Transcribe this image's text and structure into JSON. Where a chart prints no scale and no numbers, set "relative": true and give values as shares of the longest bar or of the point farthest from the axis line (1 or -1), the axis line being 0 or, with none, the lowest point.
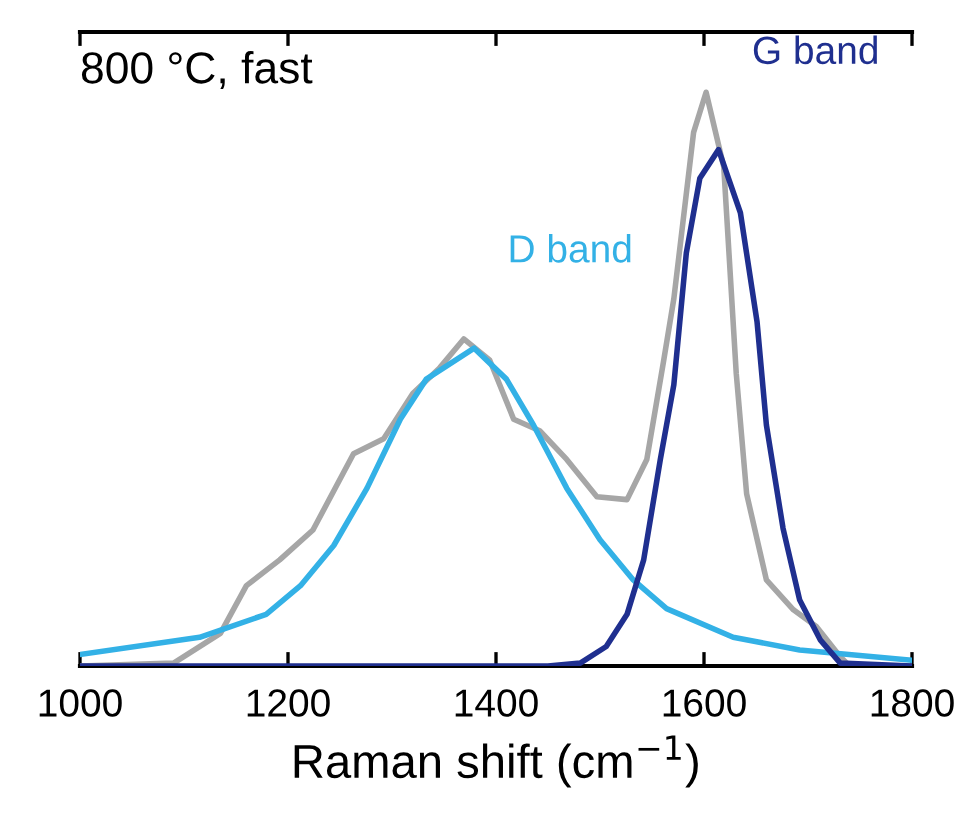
{
  "chart_data": {
    "type": "line",
    "relative": true,
    "xlabel": "Raman shift (cm$^{−1}$)",
    "annotations": [
      "800 °C, fast"
    ],
    "xlim": [
      1000,
      1800
    ],
    "xticks": [
      1000,
      1200,
      1400,
      1600,
      1800
    ],
    "grid": false,
    "legend": false,
    "series": [
      {
        "color": "#a6a6a6",
        "x": [
          1000,
          1090,
          1135,
          1160,
          1192,
          1224,
          1263,
          1292,
          1320,
          1346,
          1369,
          1394,
          1417,
          1442,
          1468,
          1497,
          1526,
          1545,
          1561,
          1571,
          1590,
          1602,
          1619,
          1631,
          1641,
          1660,
          1686,
          1708,
          1731,
          1740,
          1800
        ],
        "values": [
          0,
          0.005,
          0.057,
          0.14,
          0.185,
          0.237,
          0.37,
          0.396,
          0.475,
          0.52,
          0.57,
          0.533,
          0.43,
          0.41,
          0.36,
          0.295,
          0.29,
          0.36,
          0.53,
          0.64,
          0.93,
          1.0,
          0.87,
          0.51,
          0.3,
          0.15,
          0.098,
          0.069,
          0.016,
          0,
          0
        ]
      },
      {
        "name": "D band",
        "color": "#33b1e6",
        "x": [
          1000,
          1115,
          1179,
          1212,
          1244,
          1276,
          1308,
          1333,
          1379,
          1410,
          1436,
          1468,
          1500,
          1532,
          1564,
          1628,
          1692,
          1800
        ],
        "values": [
          0.02,
          0.05,
          0.09,
          0.14,
          0.21,
          0.31,
          0.43,
          0.5,
          0.554,
          0.5,
          0.42,
          0.31,
          0.22,
          0.15,
          0.1,
          0.05,
          0.028,
          0.01
        ]
      },
      {
        "name": "G band",
        "color": "#1f2f8f",
        "x": [
          1000,
          1450,
          1481,
          1506,
          1526,
          1542,
          1558,
          1571,
          1583,
          1596,
          1614,
          1635,
          1651,
          1660,
          1676,
          1692,
          1712,
          1731,
          1800
        ],
        "values": [
          0,
          0,
          0.005,
          0.034,
          0.09,
          0.185,
          0.36,
          0.49,
          0.72,
          0.85,
          0.9,
          0.79,
          0.6,
          0.42,
          0.24,
          0.115,
          0.045,
          0.005,
          0
        ]
      }
    ]
  }
}
